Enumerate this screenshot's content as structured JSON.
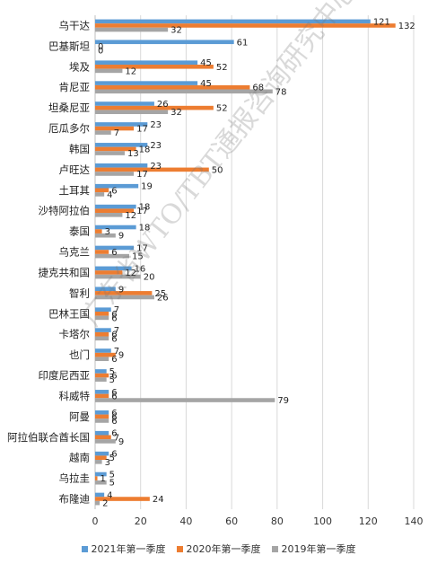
{
  "chart_data": {
    "type": "bar",
    "orientation": "horizontal",
    "title": "",
    "xlabel": "",
    "ylabel": "",
    "xlim": [
      0,
      140
    ],
    "x_ticks": [
      0,
      20,
      40,
      60,
      80,
      100,
      120,
      140
    ],
    "grid": "vertical",
    "legend_position": "bottom",
    "categories": [
      "乌干达",
      "巴基斯坦",
      "埃及",
      "肯尼亚",
      "坦桑尼亚",
      "厄瓜多尔",
      "韩国",
      "卢旺达",
      "土耳其",
      "沙特阿拉伯",
      "泰国",
      "乌克兰",
      "捷克共和国",
      "智利",
      "巴林王国",
      "卡塔尔",
      "也门",
      "印度尼西亚",
      "科威特",
      "阿曼",
      "阿拉伯联合酋长国",
      "越南",
      "乌拉圭",
      "布隆迪"
    ],
    "series": [
      {
        "name": "2021年第一季度",
        "color": "#5B9BD5",
        "values": [
          121,
          61,
          45,
          45,
          26,
          23,
          23,
          23,
          19,
          18,
          18,
          17,
          16,
          9,
          7,
          7,
          7,
          5,
          6,
          6,
          6,
          6,
          5,
          4
        ]
      },
      {
        "name": "2020年第一季度",
        "color": "#ED7D31",
        "values": [
          132,
          0,
          52,
          68,
          52,
          17,
          18,
          50,
          6,
          17,
          3,
          6,
          12,
          25,
          6,
          6,
          9,
          6,
          6,
          6,
          7,
          5,
          1,
          24
        ]
      },
      {
        "name": "2019年第一季度",
        "color": "#A5A5A5",
        "values": [
          32,
          0,
          12,
          78,
          32,
          7,
          13,
          17,
          4,
          12,
          9,
          15,
          20,
          26,
          6,
          6,
          6,
          5,
          79,
          6,
          9,
          3,
          5,
          2
        ]
      }
    ]
  },
  "watermark": "广东省WTO/TBT通报咨询研究中心"
}
